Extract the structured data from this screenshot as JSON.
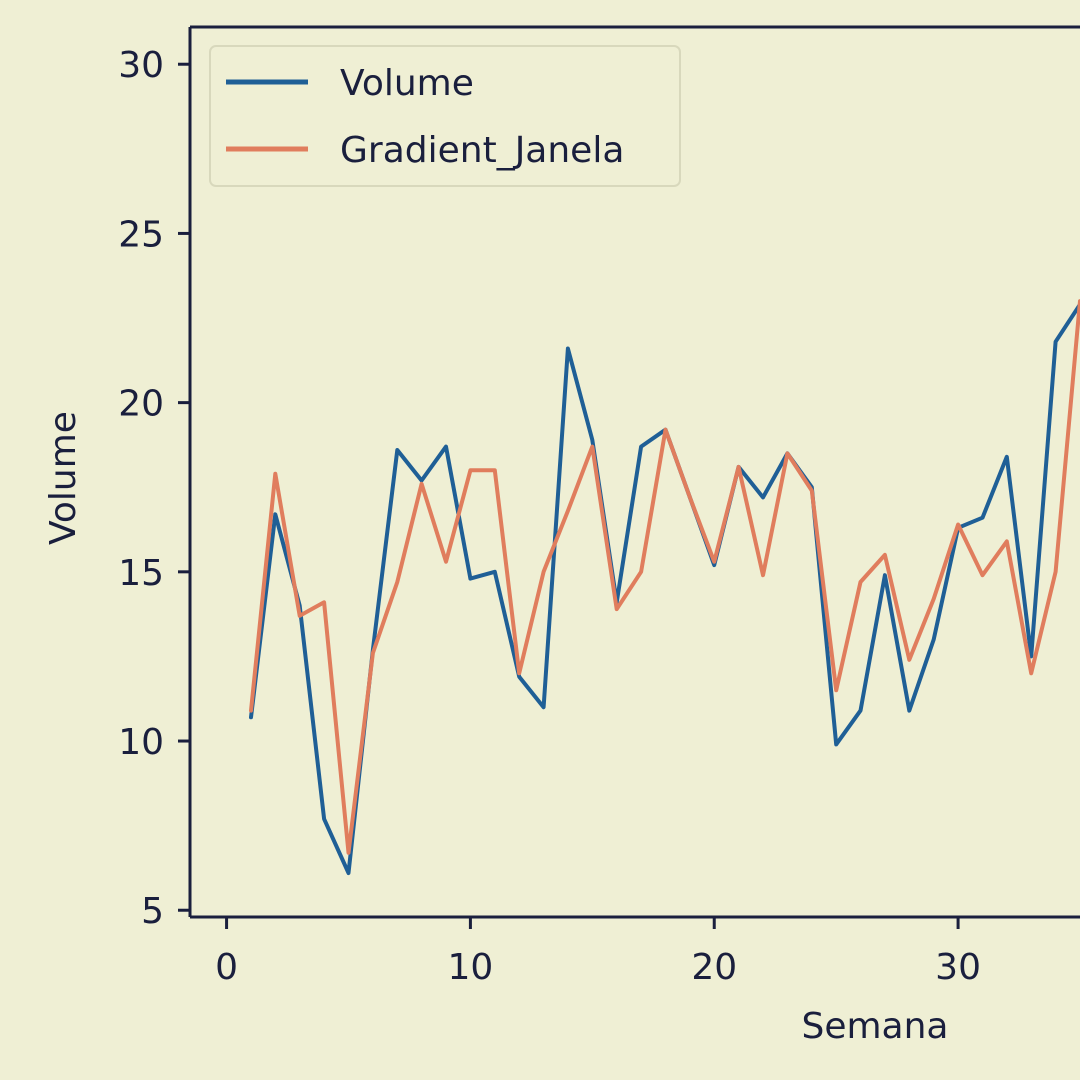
{
  "chart_data": {
    "type": "line",
    "title": "",
    "xlabel": "Semana",
    "ylabel": "Volume",
    "xlim": [
      -1.5,
      35
    ],
    "ylim": [
      4.8,
      31.1
    ],
    "xticks": [
      0,
      10,
      20,
      30
    ],
    "yticks": [
      5,
      10,
      15,
      20,
      25,
      30
    ],
    "grid": false,
    "legend_position": "top-left",
    "colors": {
      "background": "#efefd4",
      "axis": "#1a1f3d"
    },
    "series": [
      {
        "name": "Volume",
        "color": "#1f5f96",
        "x": [
          1,
          2,
          3,
          4,
          5,
          6,
          7,
          8,
          9,
          10,
          11,
          12,
          13,
          14,
          15,
          16,
          17,
          18,
          19,
          20,
          21,
          22,
          23,
          24,
          25,
          26,
          27,
          28,
          29,
          30,
          31,
          32,
          33,
          34,
          35
        ],
        "y": [
          10.7,
          16.7,
          14.0,
          7.7,
          6.1,
          12.7,
          18.6,
          17.7,
          18.7,
          14.8,
          15.0,
          11.9,
          11.0,
          21.6,
          18.9,
          14.1,
          18.7,
          19.2,
          17.2,
          15.2,
          18.1,
          17.2,
          18.5,
          17.5,
          9.9,
          10.9,
          14.9,
          10.9,
          13.0,
          16.3,
          16.6,
          18.4,
          12.5,
          21.8,
          22.9
        ]
      },
      {
        "name": "Gradient_Janela",
        "color": "#e07d5d",
        "x": [
          1,
          2,
          3,
          4,
          5,
          6,
          7,
          8,
          9,
          10,
          11,
          12,
          13,
          14,
          15,
          16,
          17,
          18,
          19,
          20,
          21,
          22,
          23,
          24,
          25,
          26,
          27,
          28,
          29,
          30,
          31,
          32,
          33,
          34,
          35
        ],
        "y": [
          10.9,
          17.9,
          13.7,
          14.1,
          6.7,
          12.6,
          14.7,
          17.6,
          15.3,
          18.0,
          18.0,
          12.0,
          15.0,
          16.8,
          18.7,
          13.9,
          15.0,
          19.2,
          17.2,
          15.3,
          18.1,
          14.9,
          18.5,
          17.4,
          11.5,
          14.7,
          15.5,
          12.4,
          14.2,
          16.4,
          14.9,
          15.9,
          12.0,
          15.0,
          23.0
        ]
      }
    ]
  }
}
